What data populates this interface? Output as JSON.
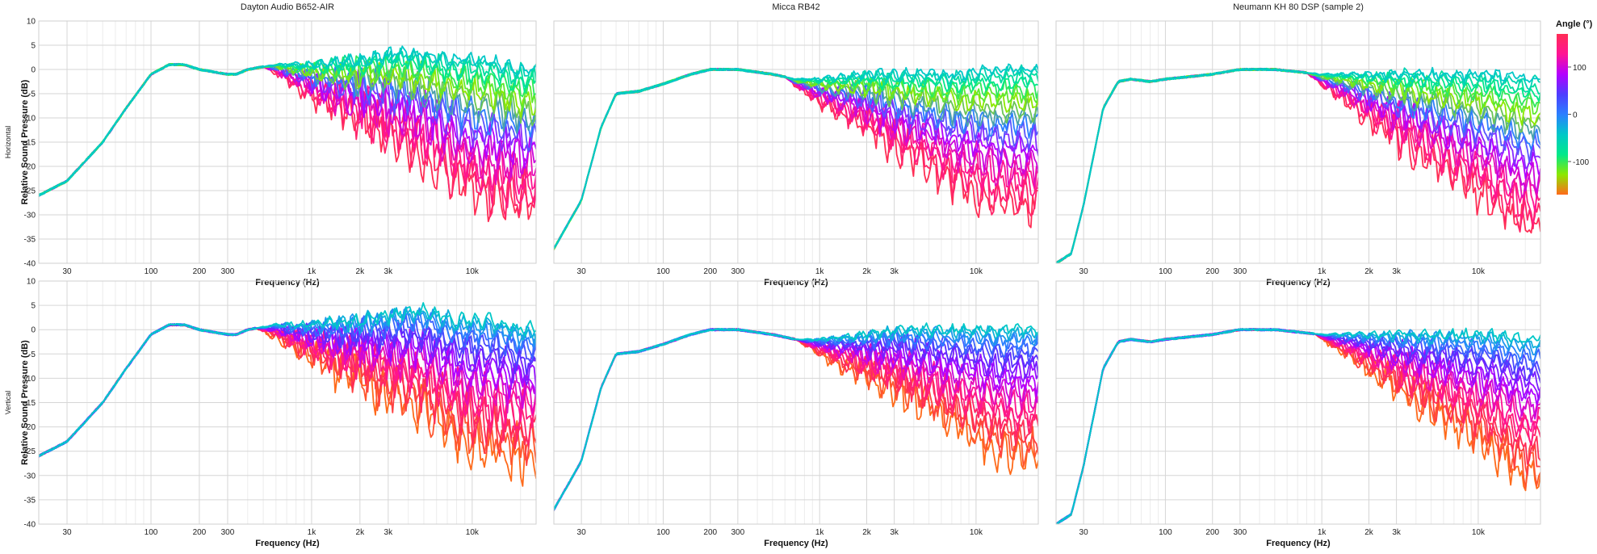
{
  "chart_data": {
    "type": "line",
    "x_unit": "Hz",
    "x_scale": "log",
    "xlim": [
      20,
      25000
    ],
    "ylim": [
      -40,
      10
    ],
    "x_ticks": [
      {
        "value": 30,
        "label": "30"
      },
      {
        "value": 100,
        "label": "100"
      },
      {
        "value": 200,
        "label": "200"
      },
      {
        "value": 300,
        "label": "300"
      },
      {
        "value": 1000,
        "label": "1k"
      },
      {
        "value": 2000,
        "label": "2k"
      },
      {
        "value": 3000,
        "label": "3k"
      },
      {
        "value": 10000,
        "label": "10k"
      }
    ],
    "y_ticks": [
      10,
      5,
      0,
      -5,
      -10,
      -15,
      -20,
      -25,
      -30,
      -35,
      -40
    ],
    "xlabel": "Frequency (Hz)",
    "ylabel": "Relative Sound Pressure (dB)",
    "grid": true,
    "columns": [
      "Dayton Audio B652-AIR",
      "Micca RB42",
      "Neumann KH 80 DSP (sample 2)"
    ],
    "rows": [
      "Horizontal",
      "Vertical"
    ],
    "legend": {
      "title": "Angle (°)",
      "placement": "right",
      "range": [
        -170,
        170
      ],
      "ticks": [
        100,
        0,
        -100
      ],
      "colors": [
        "#ff2d55",
        "#ff1493",
        "#b400ff",
        "#4d3dff",
        "#2b7fff",
        "#00c8c8",
        "#00e88a",
        "#8be800",
        "#ff6a1a"
      ]
    },
    "angles": [
      0,
      10,
      20,
      30,
      40,
      50,
      60,
      70,
      80,
      90,
      100,
      110,
      120,
      130,
      140,
      150,
      160,
      170,
      180
    ],
    "panels": [
      {
        "row": "Horizontal",
        "column": "Dayton Audio B652-AIR",
        "base": [
          [
            20,
            -26
          ],
          [
            30,
            -23
          ],
          [
            50,
            -15
          ],
          [
            70,
            -8
          ],
          [
            100,
            -1
          ],
          [
            130,
            1
          ],
          [
            160,
            1
          ],
          [
            200,
            0
          ],
          [
            300,
            -1
          ],
          [
            340,
            -1
          ],
          [
            400,
            0
          ],
          [
            600,
            1
          ],
          [
            1000,
            1
          ],
          [
            2000,
            2
          ],
          [
            3000,
            3
          ],
          [
            5000,
            3
          ],
          [
            8000,
            2
          ],
          [
            12000,
            2
          ],
          [
            20000,
            0
          ]
        ],
        "offaxis_onset_hz": 500,
        "max_rolloff_db": 28,
        "ripple_db": 4
      },
      {
        "row": "Horizontal",
        "column": "Micca RB42",
        "base": [
          [
            20,
            -37
          ],
          [
            30,
            -27
          ],
          [
            40,
            -12
          ],
          [
            50,
            -5
          ],
          [
            70,
            -4.5
          ],
          [
            100,
            -3
          ],
          [
            150,
            -1
          ],
          [
            200,
            0
          ],
          [
            300,
            0
          ],
          [
            500,
            -1
          ],
          [
            700,
            -2
          ],
          [
            1000,
            -2
          ],
          [
            2000,
            -1
          ],
          [
            3000,
            -1
          ],
          [
            5000,
            -1
          ],
          [
            8000,
            -1
          ],
          [
            12000,
            0
          ],
          [
            20000,
            0
          ]
        ],
        "offaxis_onset_hz": 600,
        "max_rolloff_db": 28,
        "ripple_db": 3
      },
      {
        "row": "Horizontal",
        "column": "Neumann KH 80 DSP (sample 2)",
        "base": [
          [
            20,
            -40
          ],
          [
            25,
            -38
          ],
          [
            30,
            -28
          ],
          [
            40,
            -8
          ],
          [
            50,
            -2.5
          ],
          [
            60,
            -2
          ],
          [
            80,
            -2.5
          ],
          [
            100,
            -2
          ],
          [
            200,
            -1
          ],
          [
            300,
            0
          ],
          [
            500,
            0
          ],
          [
            1000,
            -1
          ],
          [
            2000,
            -1
          ],
          [
            3000,
            -1
          ],
          [
            5000,
            -1
          ],
          [
            8000,
            -1
          ],
          [
            12000,
            -1
          ],
          [
            20000,
            -2
          ]
        ],
        "offaxis_onset_hz": 800,
        "max_rolloff_db": 30,
        "ripple_db": 3
      },
      {
        "row": "Vertical",
        "column": "Dayton Audio B652-AIR",
        "base": [
          [
            20,
            -26
          ],
          [
            30,
            -23
          ],
          [
            50,
            -15
          ],
          [
            70,
            -8
          ],
          [
            100,
            -1
          ],
          [
            130,
            1
          ],
          [
            160,
            1
          ],
          [
            200,
            0
          ],
          [
            300,
            -1
          ],
          [
            340,
            -1
          ],
          [
            400,
            0
          ],
          [
            600,
            1
          ],
          [
            1000,
            1
          ],
          [
            2000,
            2
          ],
          [
            3000,
            3
          ],
          [
            5000,
            4
          ],
          [
            8000,
            2
          ],
          [
            12000,
            2
          ],
          [
            20000,
            0
          ]
        ],
        "offaxis_onset_hz": 450,
        "max_rolloff_db": 26,
        "ripple_db": 4
      },
      {
        "row": "Vertical",
        "column": "Micca RB42",
        "base": [
          [
            20,
            -37
          ],
          [
            30,
            -27
          ],
          [
            40,
            -12
          ],
          [
            50,
            -5
          ],
          [
            70,
            -4.5
          ],
          [
            100,
            -3
          ],
          [
            150,
            -1
          ],
          [
            200,
            0
          ],
          [
            300,
            0
          ],
          [
            500,
            -1
          ],
          [
            700,
            -2
          ],
          [
            1000,
            -2
          ],
          [
            2000,
            -1
          ],
          [
            3000,
            0
          ],
          [
            5000,
            0
          ],
          [
            8000,
            0
          ],
          [
            12000,
            0
          ],
          [
            20000,
            0
          ]
        ],
        "offaxis_onset_hz": 700,
        "max_rolloff_db": 26,
        "ripple_db": 3
      },
      {
        "row": "Vertical",
        "column": "Neumann KH 80 DSP (sample 2)",
        "base": [
          [
            20,
            -40
          ],
          [
            25,
            -38
          ],
          [
            30,
            -28
          ],
          [
            40,
            -8
          ],
          [
            50,
            -2.5
          ],
          [
            60,
            -2
          ],
          [
            80,
            -2.5
          ],
          [
            100,
            -2
          ],
          [
            200,
            -1
          ],
          [
            300,
            0
          ],
          [
            500,
            0
          ],
          [
            1000,
            -1
          ],
          [
            2000,
            -1
          ],
          [
            3000,
            -1
          ],
          [
            5000,
            -1
          ],
          [
            8000,
            -1
          ],
          [
            12000,
            -1
          ],
          [
            20000,
            -2
          ]
        ],
        "offaxis_onset_hz": 900,
        "max_rolloff_db": 28,
        "ripple_db": 3
      }
    ]
  }
}
